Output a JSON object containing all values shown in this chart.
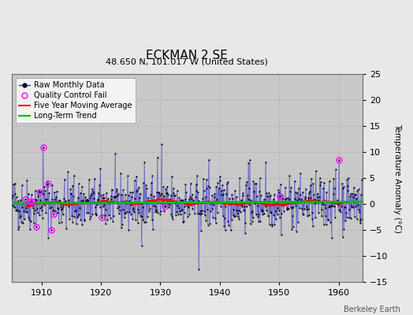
{
  "title": "ECKMAN 2 SE",
  "subtitle": "48.650 N, 101.017 W (United States)",
  "ylabel": "Temperature Anomaly (°C)",
  "credit": "Berkeley Earth",
  "year_start": 1905,
  "year_end": 1963,
  "ylim": [
    -15,
    25
  ],
  "yticks": [
    -15,
    -10,
    -5,
    0,
    5,
    10,
    15,
    20,
    25
  ],
  "xticks": [
    1910,
    1920,
    1930,
    1940,
    1950,
    1960
  ],
  "bg_color": "#e8e8e8",
  "plot_bg_color": "#c8c8c8",
  "grid_color": "#aaaaaa",
  "raw_line_color": "#3333cc",
  "raw_marker_color": "#000000",
  "moving_avg_color": "#ff0000",
  "trend_color": "#00bb00",
  "qc_fail_color": "#ff00ff",
  "long_term_trend_slope": 0.005,
  "long_term_trend_intercept": 0.15,
  "title_fontsize": 11,
  "subtitle_fontsize": 8,
  "tick_fontsize": 8,
  "legend_fontsize": 7,
  "ylabel_fontsize": 7.5
}
